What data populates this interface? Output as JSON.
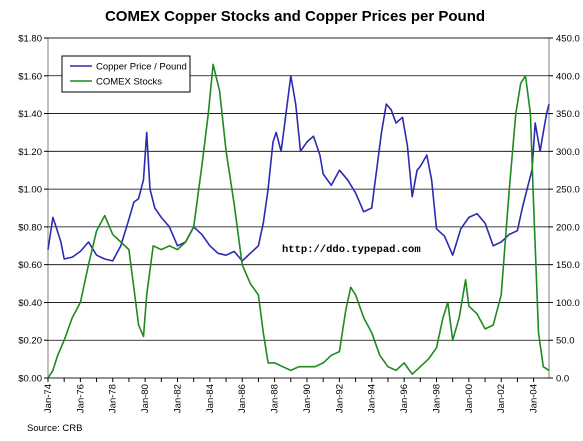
{
  "chart_data": {
    "type": "line",
    "title": "COMEX Copper Stocks and Copper Prices per Pound",
    "source": "Source: CRB",
    "annotation": "http://ddo.typepad.com",
    "x_ticks": [
      "Jan-74",
      "Jan-76",
      "Jan-78",
      "Jan-80",
      "Jan-82",
      "Jan-84",
      "Jan-86",
      "Jan-88",
      "Jan-90",
      "Jan-92",
      "Jan-94",
      "Jan-96",
      "Jan-98",
      "Jan-00",
      "Jan-02",
      "Jan-04"
    ],
    "x_range": [
      1974.0,
      2004.95
    ],
    "y_left": {
      "ticks": [
        "$0.00",
        "$0.20",
        "$0.40",
        "$0.60",
        "$0.80",
        "$1.00",
        "$1.20",
        "$1.40",
        "$1.60",
        "$1.80"
      ],
      "range": [
        0,
        1.8
      ]
    },
    "y_right": {
      "ticks": [
        "0.0",
        "50.0",
        "100.0",
        "150.0",
        "200.0",
        "250.0",
        "300.0",
        "350.0",
        "400.0",
        "450.0"
      ],
      "range": [
        0,
        450
      ]
    },
    "grid": true,
    "legend_position": "top-left",
    "series": [
      {
        "name": "Copper Price / Pound",
        "axis": "left",
        "color": "#2b2bb0",
        "x": [
          1974.0,
          1974.3,
          1974.5,
          1974.8,
          1975.0,
          1975.5,
          1976.0,
          1976.5,
          1977.0,
          1977.5,
          1978.0,
          1978.5,
          1979.0,
          1979.3,
          1979.6,
          1979.9,
          1980.1,
          1980.3,
          1980.6,
          1981.0,
          1981.5,
          1982.0,
          1982.5,
          1983.0,
          1983.5,
          1984.0,
          1984.5,
          1985.0,
          1985.5,
          1986.0,
          1986.5,
          1987.0,
          1987.3,
          1987.6,
          1987.9,
          1988.1,
          1988.4,
          1988.7,
          1989.0,
          1989.3,
          1989.6,
          1990.0,
          1990.4,
          1990.8,
          1991.0,
          1991.5,
          1992.0,
          1992.5,
          1993.0,
          1993.5,
          1994.0,
          1994.3,
          1994.6,
          1994.9,
          1995.2,
          1995.5,
          1995.9,
          1996.2,
          1996.5,
          1996.8,
          1997.0,
          1997.4,
          1997.7,
          1998.0,
          1998.5,
          1999.0,
          1999.5,
          2000.0,
          2000.5,
          2001.0,
          2001.5,
          2002.0,
          2002.5,
          2003.0,
          2003.3,
          2003.6,
          2003.9,
          2004.1,
          2004.4,
          2004.6,
          2004.8,
          2004.95
        ],
        "y": [
          0.68,
          0.85,
          0.8,
          0.72,
          0.63,
          0.64,
          0.67,
          0.72,
          0.65,
          0.63,
          0.62,
          0.7,
          0.84,
          0.93,
          0.95,
          1.05,
          1.3,
          1.0,
          0.9,
          0.85,
          0.8,
          0.7,
          0.72,
          0.8,
          0.76,
          0.7,
          0.66,
          0.65,
          0.67,
          0.62,
          0.66,
          0.7,
          0.82,
          1.0,
          1.25,
          1.3,
          1.2,
          1.4,
          1.6,
          1.45,
          1.2,
          1.25,
          1.28,
          1.18,
          1.08,
          1.02,
          1.1,
          1.05,
          0.98,
          0.88,
          0.9,
          1.1,
          1.3,
          1.45,
          1.42,
          1.35,
          1.38,
          1.23,
          0.96,
          1.1,
          1.12,
          1.18,
          1.05,
          0.79,
          0.75,
          0.65,
          0.79,
          0.85,
          0.87,
          0.82,
          0.7,
          0.72,
          0.76,
          0.78,
          0.9,
          1.0,
          1.1,
          1.35,
          1.2,
          1.3,
          1.4,
          1.45
        ]
      },
      {
        "name": "COMEX Stocks",
        "axis": "right",
        "color": "#1f8a1f",
        "x": [
          1974.0,
          1974.3,
          1974.6,
          1975.0,
          1975.5,
          1976.0,
          1976.5,
          1977.0,
          1977.5,
          1978.0,
          1978.5,
          1979.0,
          1979.3,
          1979.6,
          1979.9,
          1980.1,
          1980.5,
          1981.0,
          1981.5,
          1982.0,
          1982.5,
          1983.0,
          1983.5,
          1983.9,
          1984.2,
          1984.6,
          1985.0,
          1985.5,
          1986.0,
          1986.5,
          1987.0,
          1987.3,
          1987.6,
          1988.0,
          1988.5,
          1989.0,
          1989.5,
          1990.0,
          1990.5,
          1991.0,
          1991.5,
          1992.0,
          1992.4,
          1992.7,
          1993.0,
          1993.5,
          1994.0,
          1994.5,
          1995.0,
          1995.5,
          1996.0,
          1996.5,
          1997.0,
          1997.5,
          1998.0,
          1998.4,
          1998.7,
          1999.0,
          1999.4,
          1999.8,
          2000.0,
          2000.5,
          2001.0,
          2001.5,
          2002.0,
          2002.5,
          2002.9,
          2003.2,
          2003.5,
          2003.8,
          2004.0,
          2004.3,
          2004.6,
          2004.95
        ],
        "y": [
          0,
          10,
          30,
          50,
          80,
          100,
          150,
          195,
          215,
          190,
          180,
          170,
          120,
          70,
          55,
          110,
          175,
          170,
          175,
          170,
          180,
          200,
          280,
          350,
          415,
          380,
          300,
          230,
          150,
          125,
          110,
          60,
          20,
          20,
          15,
          10,
          15,
          15,
          15,
          20,
          30,
          35,
          90,
          120,
          110,
          80,
          60,
          30,
          15,
          10,
          20,
          5,
          15,
          25,
          40,
          80,
          100,
          50,
          80,
          130,
          95,
          85,
          65,
          70,
          110,
          250,
          350,
          390,
          400,
          350,
          230,
          60,
          15,
          10
        ]
      }
    ]
  }
}
